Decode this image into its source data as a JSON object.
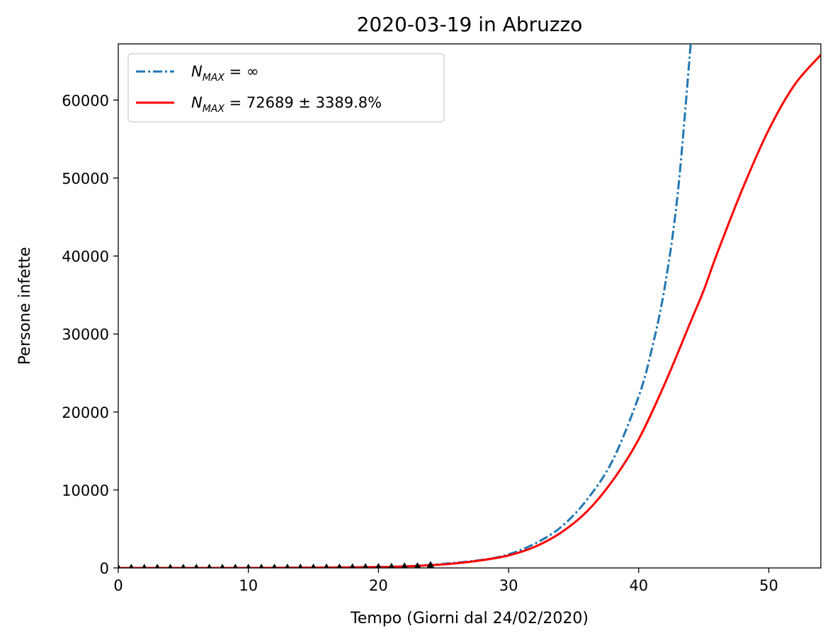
{
  "chart_data": {
    "type": "line",
    "title": "2020-03-19 in Abruzzo",
    "xlabel": "Tempo (Giorni dal 24/02/2020)",
    "ylabel": "Persone infette",
    "xlim": [
      0,
      54
    ],
    "ylim": [
      0,
      67200
    ],
    "x_ticks": [
      0,
      10,
      20,
      30,
      40,
      50
    ],
    "y_ticks": [
      0,
      10000,
      20000,
      30000,
      40000,
      50000,
      60000
    ],
    "grid": false,
    "legend_placement": "top-left",
    "series": [
      {
        "name_main": "N",
        "name_sub": "MAX",
        "name_rest": " = ∞",
        "style": "dashdot",
        "color": "#1f77b4",
        "x": [
          0,
          10,
          20,
          24,
          28,
          30,
          32,
          34,
          36,
          38,
          40,
          41,
          42,
          43,
          44
        ],
        "y": [
          0,
          5,
          120,
          400,
          1050,
          1750,
          3100,
          5200,
          8700,
          13800,
          22000,
          28000,
          36000,
          48000,
          67200
        ]
      },
      {
        "name_main": "N",
        "name_sub": "MAX",
        "name_rest": " = 72689 ± 3389.8%",
        "style": "solid",
        "color": "#ff0000",
        "x": [
          0,
          10,
          20,
          24,
          26,
          28,
          30,
          32,
          34,
          36,
          38,
          40,
          42,
          44,
          45,
          46,
          48,
          50,
          52,
          54
        ],
        "y": [
          0,
          5,
          110,
          350,
          600,
          1000,
          1600,
          2700,
          4500,
          7200,
          11200,
          16500,
          23600,
          31600,
          35600,
          40200,
          48700,
          56200,
          62000,
          65800
        ]
      }
    ],
    "observed": {
      "marker": "triangle",
      "color": "#000000",
      "x": [
        0,
        1,
        2,
        3,
        4,
        5,
        6,
        7,
        8,
        9,
        10,
        11,
        12,
        13,
        14,
        15,
        16,
        17,
        18,
        19,
        20,
        21,
        22,
        23,
        24
      ],
      "y": [
        0,
        0,
        0,
        0,
        0,
        0,
        0,
        0,
        0,
        0,
        5,
        8,
        10,
        14,
        18,
        30,
        38,
        50,
        60,
        84,
        102,
        130,
        176,
        209,
        355
      ]
    }
  }
}
